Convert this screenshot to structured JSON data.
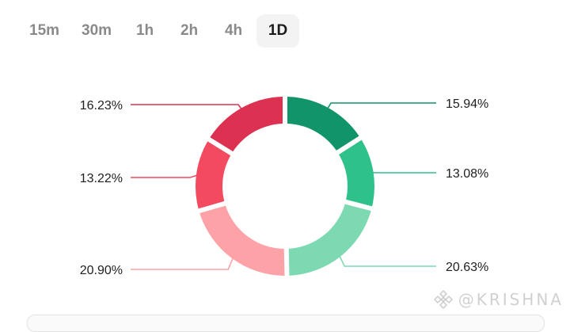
{
  "interval_tabs": [
    {
      "label": "15m",
      "active": false
    },
    {
      "label": "30m",
      "active": false
    },
    {
      "label": "1h",
      "active": false
    },
    {
      "label": "2h",
      "active": false
    },
    {
      "label": "4h",
      "active": false
    },
    {
      "label": "1D",
      "active": true
    }
  ],
  "chart_data": {
    "type": "pie",
    "donut": true,
    "categories": [
      "",
      "",
      "",
      "",
      "",
      ""
    ],
    "values": [
      15.94,
      13.08,
      20.63,
      20.9,
      13.22,
      16.23
    ],
    "labels": [
      "15.94%",
      "13.08%",
      "20.63%",
      "20.90%",
      "13.22%",
      "16.23%"
    ],
    "colors": [
      "#12946a",
      "#2fc18a",
      "#7cd9b1",
      "#fda2a7",
      "#f34a5f",
      "#dc3150"
    ],
    "title": "",
    "legend": "none"
  },
  "watermark": {
    "text": "@KRISHNA"
  }
}
